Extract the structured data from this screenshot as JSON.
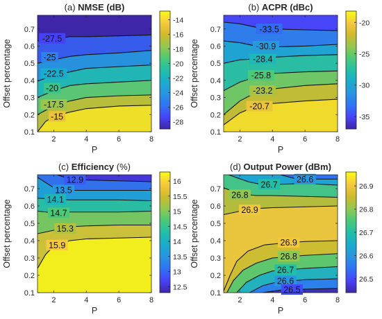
{
  "colors": {
    "colormap": [
      "#3e26a8",
      "#4743f8",
      "#2f74f5",
      "#2a95e0",
      "#1aaccd",
      "#22bfa6",
      "#4cc977",
      "#95c74e",
      "#cfba2d",
      "#f7c93f",
      "#f9fb15"
    ],
    "contour_line": "#111111",
    "axis": "#262626"
  },
  "chart_data": [
    {
      "type": "heatmap",
      "id": "nmse",
      "title_prefix": "(a) ",
      "title_bold": "NMSE (dB)",
      "title_suffix": "",
      "xlabel": "P",
      "ylabel": "Offset percentage",
      "xlim": [
        1,
        8
      ],
      "ylim": [
        0.1,
        0.78
      ],
      "xticks": [
        "2",
        "4",
        "6",
        "8"
      ],
      "xtick_values": [
        2,
        4,
        6,
        8
      ],
      "yticks": [
        "0.1",
        "0.2",
        "0.3",
        "0.4",
        "0.5",
        "0.6",
        "0.7"
      ],
      "ytick_values": [
        0.1,
        0.2,
        0.3,
        0.4,
        0.5,
        0.6,
        0.7
      ],
      "clim": [
        -29,
        -12.8
      ],
      "colorbar_ticks": [
        "-14",
        "-16",
        "-18",
        "-20",
        "-22",
        "-24",
        "-26",
        "-28"
      ],
      "colorbar_values": [
        -14,
        -16,
        -18,
        -20,
        -22,
        -24,
        -26,
        -28
      ],
      "contours": [
        {
          "label": "-27.5",
          "level": -27.5,
          "points": [
            [
              1,
              0.63
            ],
            [
              2,
              0.64
            ],
            [
              3,
              0.655
            ],
            [
              4,
              0.655
            ],
            [
              6,
              0.66
            ],
            [
              8,
              0.665
            ]
          ],
          "label_at": [
            1.9,
            0.645
          ]
        },
        {
          "label": "-25",
          "level": -25,
          "points": [
            [
              1,
              0.5
            ],
            [
              2,
              0.52
            ],
            [
              3,
              0.54
            ],
            [
              4,
              0.55
            ],
            [
              6,
              0.56
            ],
            [
              8,
              0.575
            ]
          ],
          "label_at": [
            1.75,
            0.535
          ]
        },
        {
          "label": "-22.5",
          "level": -22.5,
          "points": [
            [
              1,
              0.395
            ],
            [
              2,
              0.43
            ],
            [
              3,
              0.45
            ],
            [
              4,
              0.47
            ],
            [
              6,
              0.48
            ],
            [
              8,
              0.49
            ]
          ],
          "label_at": [
            2.0,
            0.44
          ]
        },
        {
          "label": "-20",
          "level": -20,
          "points": [
            [
              1,
              0.3
            ],
            [
              2,
              0.34
            ],
            [
              3,
              0.37
            ],
            [
              4,
              0.38
            ],
            [
              6,
              0.39
            ],
            [
              8,
              0.4
            ]
          ],
          "label_at": [
            1.9,
            0.355
          ]
        },
        {
          "label": "-17.5",
          "level": -17.5,
          "points": [
            [
              1,
              0.2
            ],
            [
              2,
              0.25
            ],
            [
              3,
              0.28
            ],
            [
              4,
              0.3
            ],
            [
              6,
              0.31
            ],
            [
              8,
              0.315
            ]
          ],
          "label_at": [
            2.0,
            0.26
          ]
        },
        {
          "label": "-15",
          "level": -15,
          "points": [
            [
              1,
              0.1
            ],
            [
              1.5,
              0.16
            ],
            [
              2,
              0.19
            ],
            [
              3,
              0.215
            ],
            [
              4,
              0.235
            ],
            [
              6,
              0.25
            ],
            [
              8,
              0.255
            ]
          ],
          "label_at": [
            2.2,
            0.19
          ]
        }
      ]
    },
    {
      "type": "heatmap",
      "id": "acpr",
      "title_prefix": "(b) ",
      "title_bold": "ACPR (dBc)",
      "title_suffix": "",
      "xlabel": "P",
      "ylabel": "Offset percentage",
      "xlim": [
        1,
        8
      ],
      "ylim": [
        0.1,
        0.78
      ],
      "xticks": [
        "2",
        "4",
        "6",
        "8"
      ],
      "xtick_values": [
        2,
        4,
        6,
        8
      ],
      "yticks": [
        "0.1",
        "0.2",
        "0.3",
        "0.4",
        "0.5",
        "0.6",
        "0.7"
      ],
      "ytick_values": [
        0.1,
        0.2,
        0.3,
        0.4,
        0.5,
        0.6,
        0.7
      ],
      "clim": [
        -37,
        -18.2
      ],
      "colorbar_ticks": [
        "-20",
        "-25",
        "-30",
        "-35"
      ],
      "colorbar_values": [
        -20,
        -25,
        -30,
        -35
      ],
      "contours": [
        {
          "label": "-33.5",
          "level": -33.5,
          "points": [
            [
              1,
              0.74
            ],
            [
              2,
              0.73
            ],
            [
              3,
              0.71
            ],
            [
              4,
              0.7
            ],
            [
              6,
              0.695
            ],
            [
              8,
              0.69
            ]
          ],
          "label_at": [
            3.8,
            0.7
          ]
        },
        {
          "label": "-30.9",
          "level": -30.9,
          "points": [
            [
              1,
              0.63
            ],
            [
              2,
              0.62
            ],
            [
              3,
              0.6
            ],
            [
              4,
              0.595
            ],
            [
              6,
              0.6
            ],
            [
              8,
              0.61
            ]
          ],
          "label_at": [
            3.6,
            0.6
          ]
        },
        {
          "label": "-28.4",
          "level": -28.4,
          "points": [
            [
              1,
              0.5
            ],
            [
              2,
              0.52
            ],
            [
              3,
              0.525
            ],
            [
              4,
              0.535
            ],
            [
              6,
              0.545
            ],
            [
              8,
              0.55
            ]
          ],
          "label_at": [
            3.4,
            0.525
          ]
        },
        {
          "label": "-25.8",
          "level": -25.8,
          "points": [
            [
              1,
              0.34
            ],
            [
              2,
              0.39
            ],
            [
              3,
              0.42
            ],
            [
              4,
              0.44
            ],
            [
              6,
              0.45
            ],
            [
              8,
              0.455
            ]
          ],
          "label_at": [
            3.3,
            0.43
          ]
        },
        {
          "label": "-23.2",
          "level": -23.2,
          "points": [
            [
              1,
              0.2
            ],
            [
              2,
              0.28
            ],
            [
              3,
              0.33
            ],
            [
              4,
              0.35
            ],
            [
              6,
              0.37
            ],
            [
              8,
              0.38
            ]
          ],
          "label_at": [
            3.4,
            0.34
          ]
        },
        {
          "label": "-20.7",
          "level": -20.7,
          "points": [
            [
              1,
              0.14
            ],
            [
              2,
              0.21
            ],
            [
              3,
              0.25
            ],
            [
              4,
              0.265
            ],
            [
              6,
              0.28
            ],
            [
              8,
              0.29
            ]
          ],
          "label_at": [
            3.2,
            0.25
          ]
        }
      ]
    },
    {
      "type": "heatmap",
      "id": "efficiency",
      "title_prefix": "(c) ",
      "title_bold": "Efficiency",
      "title_suffix": " (%)",
      "xlabel": "P",
      "ylabel": "Offset percentage",
      "xlim": [
        1,
        8
      ],
      "ylim": [
        0.1,
        0.78
      ],
      "xticks": [
        "2",
        "4",
        "6",
        "8"
      ],
      "xtick_values": [
        2,
        4,
        6,
        8
      ],
      "yticks": [
        "0.1",
        "0.2",
        "0.3",
        "0.4",
        "0.5",
        "0.6",
        "0.7"
      ],
      "ytick_values": [
        0.1,
        0.2,
        0.3,
        0.4,
        0.5,
        0.6,
        0.7
      ],
      "clim": [
        12.3,
        16.3
      ],
      "colorbar_ticks": [
        "16",
        "15.5",
        "15",
        "14.5",
        "14",
        "13.5",
        "13",
        "12.5"
      ],
      "colorbar_values": [
        16,
        15.5,
        15,
        14.5,
        14,
        13.5,
        13,
        12.5
      ],
      "contours": [
        {
          "label": "12.9",
          "level": 12.9,
          "points": [
            [
              2.2,
              0.78
            ],
            [
              3,
              0.755
            ],
            [
              4,
              0.75
            ],
            [
              6,
              0.745
            ],
            [
              8,
              0.74
            ]
          ],
          "label_at": [
            3.3,
            0.752
          ]
        },
        {
          "label": "13.5",
          "level": 13.5,
          "points": [
            [
              1,
              0.765
            ],
            [
              2,
              0.705
            ],
            [
              3,
              0.69
            ],
            [
              4,
              0.69
            ],
            [
              6,
              0.69
            ],
            [
              8,
              0.69
            ]
          ],
          "label_at": [
            2.6,
            0.692
          ]
        },
        {
          "label": "14.1",
          "level": 14.1,
          "points": [
            [
              1,
              0.645
            ],
            [
              2,
              0.64
            ],
            [
              3,
              0.635
            ],
            [
              4,
              0.635
            ],
            [
              6,
              0.635
            ],
            [
              8,
              0.63
            ]
          ],
          "label_at": [
            2.1,
            0.638
          ]
        },
        {
          "label": "14.7",
          "level": 14.7,
          "points": [
            [
              1,
              0.57
            ],
            [
              2,
              0.56
            ],
            [
              3,
              0.565
            ],
            [
              4,
              0.565
            ],
            [
              6,
              0.565
            ],
            [
              8,
              0.57
            ]
          ],
          "label_at": [
            2.3,
            0.56
          ]
        },
        {
          "label": "15.3",
          "level": 15.3,
          "points": [
            [
              1,
              0.44
            ],
            [
              2,
              0.46
            ],
            [
              3,
              0.48
            ],
            [
              4,
              0.485
            ],
            [
              6,
              0.49
            ],
            [
              8,
              0.49
            ]
          ],
          "label_at": [
            2.7,
            0.47
          ]
        },
        {
          "label": "15.9",
          "level": 15.9,
          "points": [
            [
              1,
              0.24
            ],
            [
              1.5,
              0.32
            ],
            [
              2,
              0.37
            ],
            [
              3,
              0.4
            ],
            [
              4,
              0.41
            ],
            [
              6,
              0.415
            ],
            [
              8,
              0.42
            ]
          ],
          "label_at": [
            2.2,
            0.375
          ]
        }
      ]
    },
    {
      "type": "heatmap",
      "id": "output_power",
      "title_prefix": "(d) ",
      "title_bold": "Output Power (dBm)",
      "title_suffix": "",
      "xlabel": "P",
      "ylabel": "Offset percentage",
      "xlim": [
        1,
        8
      ],
      "ylim": [
        0.1,
        0.78
      ],
      "xticks": [
        "2",
        "4",
        "6",
        "8"
      ],
      "xtick_values": [
        2,
        4,
        6,
        8
      ],
      "yticks": [
        "0.1",
        "0.2",
        "0.3",
        "0.4",
        "0.5",
        "0.6",
        "0.7"
      ],
      "ytick_values": [
        0.1,
        0.2,
        0.3,
        0.4,
        0.5,
        0.6,
        0.7
      ],
      "clim": [
        26.44,
        26.96
      ],
      "colorbar_ticks": [
        "26.9",
        "26.8",
        "26.7",
        "26.6",
        "26.5"
      ],
      "colorbar_values": [
        26.9,
        26.8,
        26.7,
        26.6,
        26.5
      ],
      "contours": [
        {
          "label": "26.6",
          "level": 26.6,
          "points": [
            [
              4.5,
              0.78
            ],
            [
              5.5,
              0.755
            ],
            [
              6.5,
              0.755
            ],
            [
              8,
              0.755
            ]
          ],
          "label_at": [
            6.0,
            0.755
          ]
        },
        {
          "label": "26.7",
          "level": 26.7,
          "points": [
            [
              1.3,
              0.78
            ],
            [
              2.5,
              0.74
            ],
            [
              3.5,
              0.72
            ],
            [
              4.5,
              0.725
            ],
            [
              6,
              0.73
            ],
            [
              8,
              0.72
            ]
          ],
          "label_at": [
            3.8,
            0.725
          ]
        },
        {
          "label": "26.8",
          "level": 26.8,
          "points": [
            [
              1,
              0.705
            ],
            [
              2,
              0.67
            ],
            [
              3,
              0.66
            ],
            [
              4,
              0.66
            ],
            [
              6,
              0.655
            ],
            [
              8,
              0.65
            ]
          ],
          "label_at": [
            2.0,
            0.665
          ]
        },
        {
          "label": "26.9",
          "level": 26.9,
          "points": [
            [
              1,
              0.55
            ],
            [
              2,
              0.57
            ],
            [
              3,
              0.585
            ],
            [
              4,
              0.59
            ],
            [
              6,
              0.595
            ],
            [
              8,
              0.6
            ]
          ],
          "label_at": [
            2.6,
            0.578
          ]
        },
        {
          "label": "26.9",
          "level": 26.9,
          "points": [
            [
              1,
              0.11
            ],
            [
              1.4,
              0.2
            ],
            [
              1.8,
              0.28
            ],
            [
              2.5,
              0.34
            ],
            [
              3.5,
              0.375
            ],
            [
              4.5,
              0.385
            ],
            [
              6,
              0.395
            ],
            [
              8,
              0.4
            ]
          ],
          "label_at": [
            5.0,
            0.39
          ]
        },
        {
          "label": "26.8",
          "level": 26.8,
          "points": [
            [
              1.2,
              0.1
            ],
            [
              1.6,
              0.17
            ],
            [
              2.2,
              0.23
            ],
            [
              3,
              0.27
            ],
            [
              4,
              0.3
            ],
            [
              6,
              0.315
            ],
            [
              8,
              0.325
            ]
          ],
          "label_at": [
            5.0,
            0.31
          ]
        },
        {
          "label": "26.7",
          "level": 26.7,
          "points": [
            [
              1.8,
              0.1
            ],
            [
              2.4,
              0.16
            ],
            [
              3.2,
              0.2
            ],
            [
              4,
              0.225
            ],
            [
              6,
              0.24
            ],
            [
              8,
              0.25
            ]
          ],
          "label_at": [
            4.8,
            0.232
          ]
        },
        {
          "label": "26.6",
          "level": 26.6,
          "points": [
            [
              2.6,
              0.1
            ],
            [
              3.4,
              0.14
            ],
            [
              4.2,
              0.16
            ],
            [
              6,
              0.175
            ],
            [
              8,
              0.18
            ]
          ],
          "label_at": [
            4.8,
            0.168
          ]
        },
        {
          "label": "26.5",
          "level": 26.5,
          "points": [
            [
              3.4,
              0.1
            ],
            [
              4.5,
              0.115
            ],
            [
              6,
              0.12
            ],
            [
              8,
              0.125
            ]
          ],
          "label_at": [
            5.2,
            0.118
          ]
        }
      ]
    }
  ]
}
